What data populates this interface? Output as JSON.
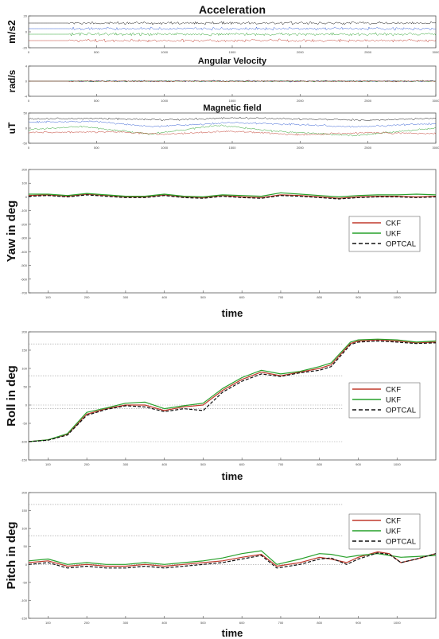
{
  "colors": {
    "red": "#c0392b",
    "green": "#27a02a",
    "blue": "#2f5bd3",
    "black": "#111111",
    "gridline": "#9a9a9a"
  },
  "chart_data": [
    {
      "type": "line",
      "title": "Acceleration",
      "ylabel": "m/s2",
      "xlabel": "",
      "xlim": [
        0,
        3000
      ],
      "ylim": [
        -20,
        20
      ],
      "xticks": [
        0,
        500,
        1000,
        1500,
        2000,
        2500,
        3000
      ],
      "xtick_labels": [
        "0",
        "500",
        "1000",
        "1500",
        "2000",
        "2500",
        "3000"
      ],
      "yticks": [
        -20,
        0,
        20
      ],
      "ytick_labels": [
        "-20",
        "0",
        "20"
      ],
      "active_from": 300,
      "jitter": 0.9,
      "series": [
        {
          "color": "#111111",
          "x": [
            0,
            3000
          ],
          "values": [
            11,
            11
          ]
        },
        {
          "color": "#2f5bd3",
          "x": [
            0,
            3000
          ],
          "values": [
            4,
            4
          ]
        },
        {
          "color": "#27a02a",
          "x": [
            0,
            3000
          ],
          "values": [
            -3,
            -3
          ]
        },
        {
          "color": "#c0392b",
          "x": [
            0,
            3000
          ],
          "values": [
            -11,
            -11
          ]
        }
      ]
    },
    {
      "type": "line",
      "title": "Angular Velocity",
      "ylabel": "rad/s",
      "xlabel": "",
      "xlim": [
        0,
        3000
      ],
      "ylim": [
        -4,
        4
      ],
      "xticks": [
        0,
        500,
        1000,
        1500,
        2000,
        2500,
        3000
      ],
      "xtick_labels": [
        "0",
        "500",
        "1000",
        "1500",
        "2000",
        "2500",
        "3000"
      ],
      "yticks": [
        -4,
        0,
        4
      ],
      "ytick_labels": [
        "-4",
        "0",
        "4"
      ],
      "active_from": 300,
      "jitter": 0.45,
      "series": [
        {
          "color": "#111111",
          "x": [
            0,
            3000
          ],
          "values": [
            0,
            0
          ]
        },
        {
          "color": "#2f5bd3",
          "x": [
            0,
            3000
          ],
          "values": [
            0,
            0
          ]
        },
        {
          "color": "#27a02a",
          "x": [
            0,
            3000
          ],
          "values": [
            0,
            0
          ]
        },
        {
          "color": "#c0392b",
          "x": [
            0,
            3000
          ],
          "values": [
            0,
            0
          ]
        }
      ]
    },
    {
      "type": "line",
      "title": "Magnetic field",
      "ylabel": "uT",
      "xlabel": "",
      "xlim": [
        0,
        3000
      ],
      "ylim": [
        -50,
        50
      ],
      "xticks": [
        0,
        500,
        1000,
        1500,
        2000,
        2500,
        3000
      ],
      "xtick_labels": [
        "0",
        "500",
        "1000",
        "1500",
        "2000",
        "2500",
        "3000"
      ],
      "yticks": [
        -50,
        0,
        50
      ],
      "ytick_labels": [
        "-50",
        "0",
        "50"
      ],
      "active_from": 0,
      "jitter": 0.6,
      "series": [
        {
          "color": "#111111",
          "x": [
            0,
            500,
            1000,
            1500,
            2000,
            2500,
            3000
          ],
          "values": [
            30,
            32,
            27,
            34,
            30,
            26,
            33
          ]
        },
        {
          "color": "#2f5bd3",
          "x": [
            0,
            500,
            900,
            1500,
            2000,
            2400,
            3000
          ],
          "values": [
            20,
            22,
            5,
            18,
            12,
            4,
            15
          ]
        },
        {
          "color": "#27a02a",
          "x": [
            0,
            400,
            900,
            1400,
            1800,
            2400,
            3000
          ],
          "values": [
            -5,
            5,
            -20,
            10,
            -10,
            -25,
            0
          ]
        },
        {
          "color": "#c0392b",
          "x": [
            0,
            600,
            1000,
            1500,
            2000,
            2500,
            3000
          ],
          "values": [
            -15,
            -12,
            -20,
            -10,
            -22,
            -15,
            -18
          ]
        }
      ]
    },
    {
      "type": "line",
      "title": "",
      "ylabel": "Yaw in deg",
      "xlabel": "time",
      "xlim": [
        50,
        1100
      ],
      "ylim": [
        -700,
        200
      ],
      "xticks": [
        100,
        200,
        300,
        400,
        500,
        600,
        700,
        800,
        900,
        1000
      ],
      "xtick_labels": [
        "100",
        "200",
        "300",
        "400",
        "500",
        "600",
        "700",
        "800",
        "900",
        "1000"
      ],
      "yticks": [
        -700,
        -600,
        -500,
        -400,
        -300,
        -200,
        -100,
        0,
        100,
        200
      ],
      "ytick_labels": [
        "-700",
        "-600",
        "-500",
        "-400",
        "-300",
        "-200",
        "-100",
        "0",
        "100",
        "200"
      ],
      "legend": {
        "position": "right",
        "entries": [
          "CKF",
          "UKF",
          "OPTCAL"
        ]
      },
      "series": [
        {
          "name": "CKF",
          "color": "#c0392b",
          "dash": false,
          "x": [
            50,
            100,
            150,
            200,
            250,
            300,
            350,
            400,
            450,
            500,
            550,
            600,
            650,
            700,
            750,
            800,
            850,
            900,
            950,
            1000,
            1050,
            1100
          ],
          "values": [
            10,
            15,
            5,
            20,
            10,
            0,
            0,
            15,
            0,
            -5,
            10,
            0,
            -5,
            15,
            10,
            0,
            -10,
            0,
            5,
            5,
            0,
            5
          ]
        },
        {
          "name": "UKF",
          "color": "#27a02a",
          "dash": false,
          "x": [
            50,
            100,
            150,
            200,
            250,
            300,
            350,
            400,
            450,
            500,
            550,
            600,
            650,
            700,
            750,
            800,
            850,
            900,
            950,
            1000,
            1050,
            1100
          ],
          "values": [
            20,
            20,
            10,
            25,
            15,
            5,
            5,
            20,
            5,
            0,
            15,
            10,
            5,
            30,
            20,
            10,
            0,
            10,
            15,
            15,
            20,
            15
          ]
        },
        {
          "name": "OPTCAL",
          "color": "#111111",
          "dash": true,
          "x": [
            50,
            100,
            150,
            200,
            250,
            300,
            350,
            400,
            450,
            500,
            550,
            600,
            650,
            700,
            750,
            800,
            850,
            900,
            950,
            1000,
            1050,
            1100
          ],
          "values": [
            5,
            10,
            0,
            15,
            5,
            -5,
            -5,
            10,
            -5,
            -10,
            5,
            -5,
            -10,
            10,
            5,
            -5,
            -15,
            -5,
            0,
            0,
            -5,
            0
          ]
        }
      ]
    },
    {
      "type": "line",
      "title": "",
      "ylabel": "Roll in deg",
      "xlabel": "time",
      "xlim": [
        50,
        1100
      ],
      "ylim": [
        -150,
        200
      ],
      "xticks": [
        100,
        200,
        300,
        400,
        500,
        600,
        700,
        800,
        900,
        1000
      ],
      "xtick_labels": [
        "100",
        "200",
        "300",
        "400",
        "500",
        "600",
        "700",
        "800",
        "900",
        "1000"
      ],
      "yticks": [
        -150,
        -100,
        -50,
        0,
        50,
        100,
        150,
        200
      ],
      "ytick_labels": [
        "-150",
        "-100",
        "-50",
        "0",
        "50",
        "100",
        "150",
        "200"
      ],
      "hlines": [
        167,
        80,
        0,
        -10,
        -100
      ],
      "legend": {
        "position": "right",
        "entries": [
          "CKF",
          "UKF",
          "OPTCAL"
        ]
      },
      "series": [
        {
          "name": "CKF",
          "color": "#c0392b",
          "dash": false,
          "x": [
            50,
            100,
            150,
            200,
            250,
            300,
            350,
            400,
            450,
            500,
            550,
            600,
            650,
            700,
            750,
            800,
            830,
            880,
            900,
            950,
            1000,
            1050,
            1100
          ],
          "values": [
            -100,
            -95,
            -80,
            -25,
            -10,
            0,
            0,
            -15,
            -5,
            0,
            40,
            70,
            90,
            80,
            90,
            100,
            110,
            168,
            175,
            178,
            175,
            170,
            172
          ]
        },
        {
          "name": "UKF",
          "color": "#27a02a",
          "dash": false,
          "x": [
            50,
            100,
            150,
            200,
            250,
            300,
            350,
            400,
            450,
            500,
            550,
            600,
            650,
            700,
            750,
            800,
            830,
            880,
            900,
            950,
            1000,
            1050,
            1100
          ],
          "values": [
            -100,
            -95,
            -78,
            -20,
            -8,
            5,
            8,
            -10,
            -2,
            5,
            45,
            75,
            95,
            85,
            92,
            105,
            115,
            172,
            178,
            180,
            178,
            172,
            175
          ]
        },
        {
          "name": "OPTCAL",
          "color": "#111111",
          "dash": true,
          "x": [
            50,
            100,
            150,
            200,
            250,
            300,
            350,
            400,
            450,
            500,
            550,
            600,
            650,
            700,
            750,
            800,
            830,
            880,
            900,
            950,
            1000,
            1050,
            1100
          ],
          "values": [
            -100,
            -96,
            -82,
            -28,
            -12,
            -2,
            -5,
            -18,
            -10,
            -15,
            35,
            65,
            85,
            78,
            88,
            95,
            105,
            165,
            172,
            175,
            172,
            168,
            170
          ]
        }
      ]
    },
    {
      "type": "line",
      "title": "",
      "ylabel": "Pitch in deg",
      "xlabel": "time",
      "xlim": [
        50,
        1100
      ],
      "ylim": [
        -150,
        200
      ],
      "xticks": [
        100,
        200,
        300,
        400,
        500,
        600,
        700,
        800,
        900,
        1000
      ],
      "xtick_labels": [
        "100",
        "200",
        "300",
        "400",
        "500",
        "600",
        "700",
        "800",
        "900",
        "1000"
      ],
      "yticks": [
        -150,
        -100,
        -50,
        0,
        50,
        100,
        150,
        200
      ],
      "ytick_labels": [
        "-150",
        "-100",
        "-50",
        "0",
        "50",
        "100",
        "150",
        "200"
      ],
      "hlines": [
        167,
        80,
        0
      ],
      "legend": {
        "position": "right",
        "entries": [
          "CKF",
          "UKF",
          "OPTCAL"
        ]
      },
      "series": [
        {
          "name": "CKF",
          "color": "#c0392b",
          "dash": false,
          "x": [
            50,
            100,
            150,
            200,
            250,
            300,
            350,
            400,
            450,
            500,
            550,
            600,
            650,
            690,
            750,
            800,
            830,
            870,
            900,
            950,
            980,
            1010,
            1050,
            1100
          ],
          "values": [
            5,
            10,
            -5,
            0,
            -5,
            -5,
            0,
            -5,
            0,
            5,
            10,
            20,
            28,
            -5,
            5,
            20,
            15,
            5,
            20,
            35,
            30,
            5,
            15,
            30
          ]
        },
        {
          "name": "UKF",
          "color": "#27a02a",
          "dash": false,
          "x": [
            50,
            100,
            150,
            200,
            250,
            300,
            350,
            400,
            450,
            500,
            550,
            600,
            650,
            690,
            750,
            800,
            830,
            870,
            900,
            950,
            980,
            1010,
            1050,
            1100
          ],
          "values": [
            10,
            15,
            0,
            5,
            0,
            0,
            5,
            0,
            5,
            10,
            18,
            30,
            38,
            0,
            15,
            30,
            28,
            20,
            25,
            30,
            25,
            20,
            22,
            25
          ]
        },
        {
          "name": "OPTCAL",
          "color": "#111111",
          "dash": true,
          "x": [
            50,
            100,
            150,
            200,
            250,
            300,
            350,
            400,
            450,
            500,
            550,
            600,
            650,
            690,
            750,
            800,
            830,
            870,
            900,
            950,
            980,
            1010,
            1050,
            1100
          ],
          "values": [
            0,
            5,
            -10,
            -5,
            -10,
            -10,
            -5,
            -10,
            -5,
            0,
            5,
            15,
            25,
            -10,
            0,
            15,
            18,
            0,
            15,
            32,
            28,
            5,
            15,
            30
          ]
        }
      ]
    }
  ]
}
